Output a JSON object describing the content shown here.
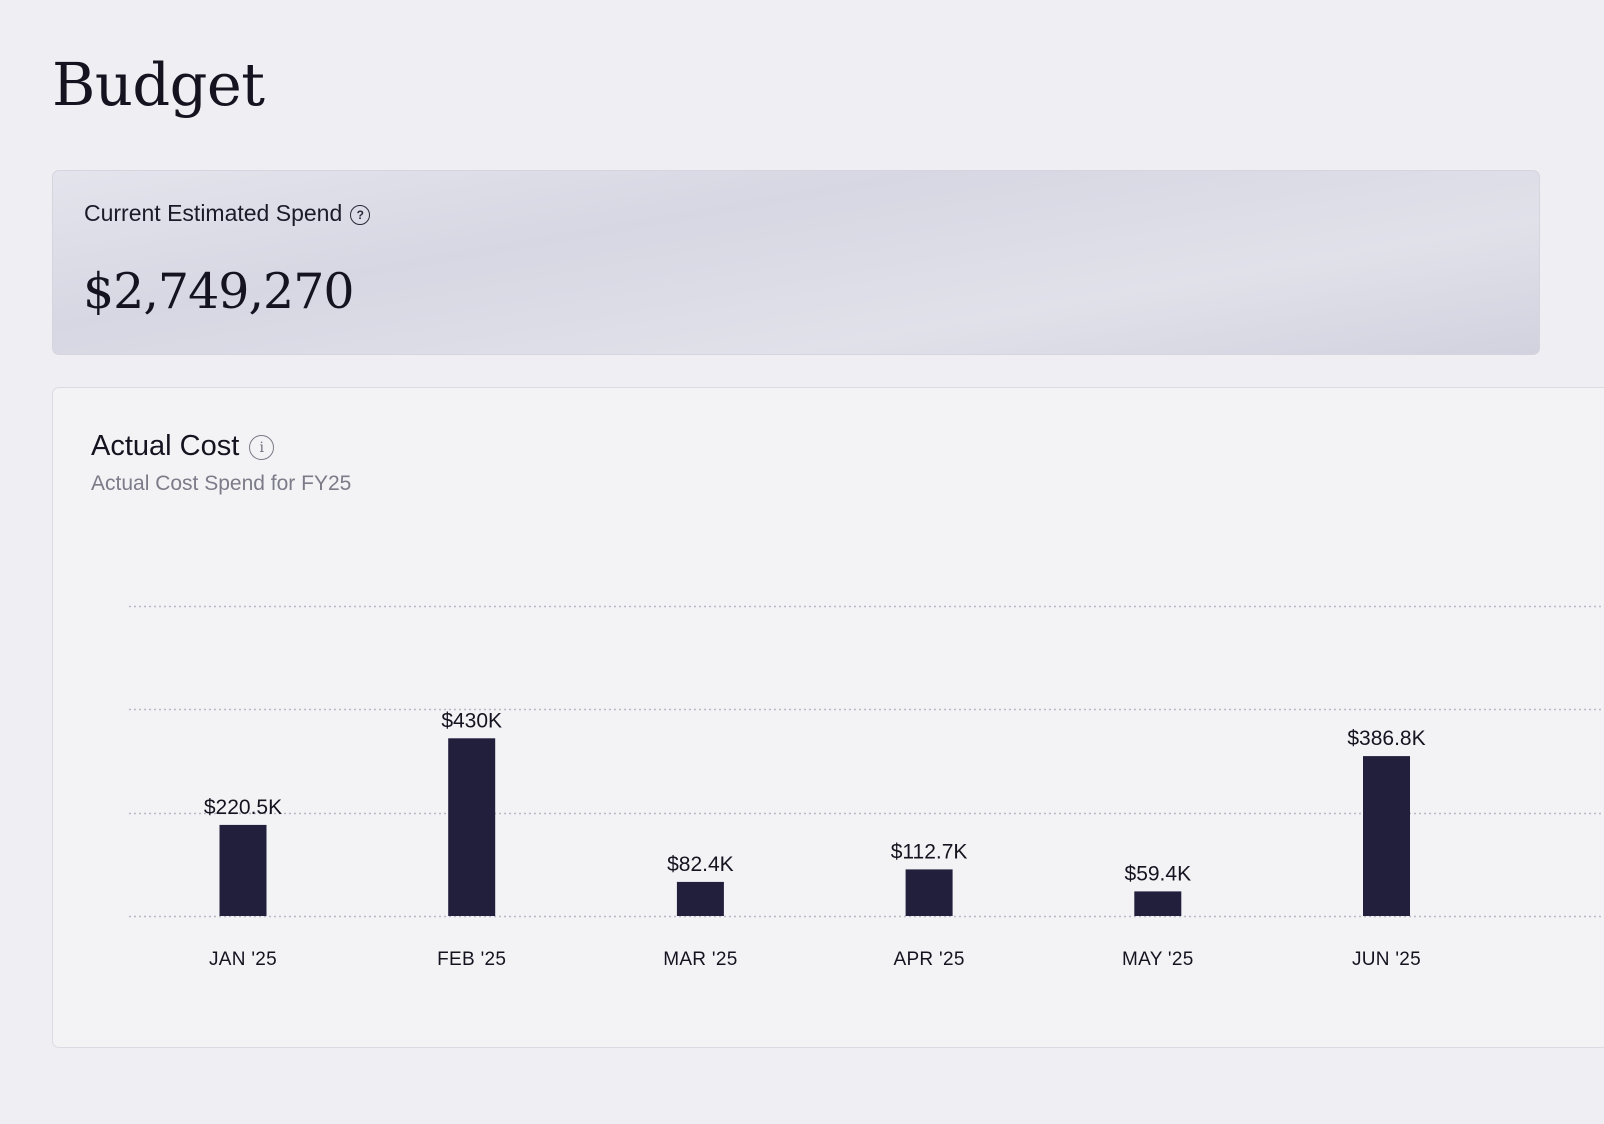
{
  "page": {
    "title": "Budget"
  },
  "spend_card": {
    "label": "Current Estimated Spend",
    "help_icon": "question-circle-icon",
    "value": "$2,749,270"
  },
  "cost_card": {
    "title": "Actual Cost",
    "info_icon": "info-circle-icon",
    "subtitle": "Actual Cost Spend for FY25"
  },
  "colors": {
    "bar": "#221f3d",
    "gridline": "#b9b8c4",
    "background": "#efeef3"
  },
  "chart_data": {
    "type": "bar",
    "title": "Actual Cost",
    "subtitle": "Actual Cost Spend for FY25",
    "categories": [
      "JAN '25",
      "FEB '25",
      "MAR '25",
      "APR '25",
      "MAY '25",
      "JUN '25"
    ],
    "values": [
      220.5,
      430,
      82.4,
      112.7,
      59.4,
      386.8
    ],
    "value_labels": [
      "$220.5K",
      "$430K",
      "$82.4K",
      "$112.7K",
      "$59.4K",
      "$386.8K"
    ],
    "ylim": [
      0,
      750
    ],
    "gridlines": [
      0,
      250,
      500,
      750
    ],
    "grid": true,
    "xlabel": "",
    "ylabel": ""
  }
}
